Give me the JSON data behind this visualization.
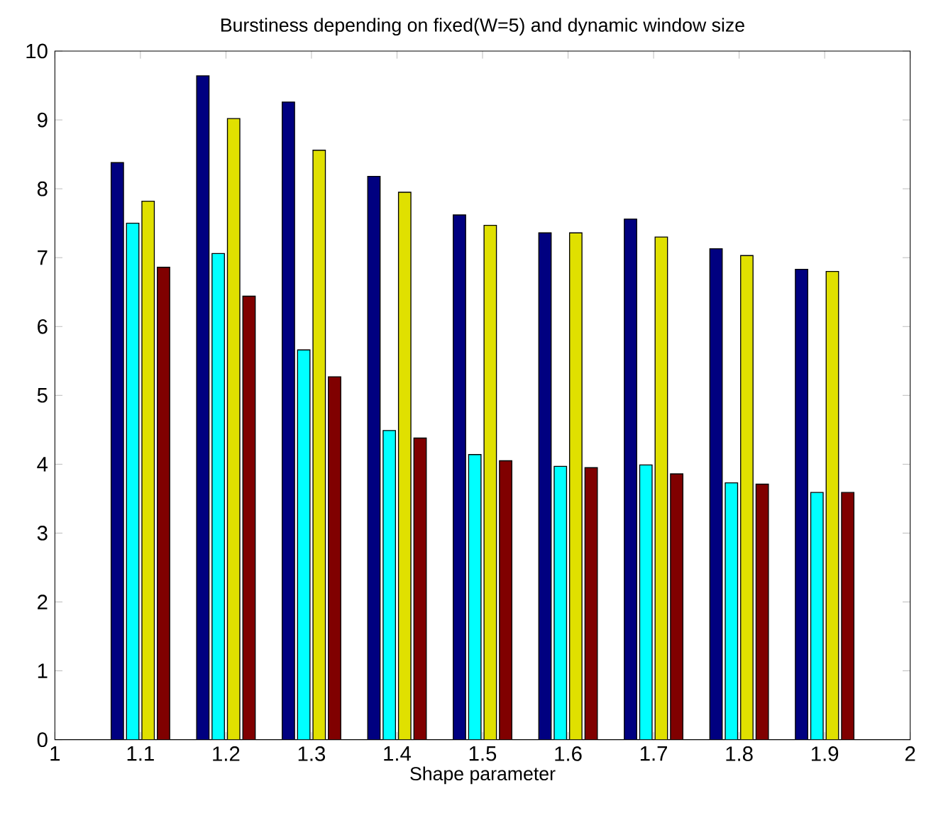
{
  "chart_data": {
    "type": "bar",
    "title": "Burstiness depending on fixed(W=5) and dynamic window size",
    "xlabel": "Shape parameter",
    "x": [
      1.1,
      1.2,
      1.3,
      1.4,
      1.5,
      1.6,
      1.7,
      1.8,
      1.9
    ],
    "series": [
      {
        "color": "#000080",
        "values": [
          8.38,
          9.64,
          9.26,
          8.18,
          7.62,
          7.36,
          7.56,
          7.13,
          6.83
        ]
      },
      {
        "color": "#00ffff",
        "values": [
          7.5,
          7.06,
          5.66,
          4.49,
          4.14,
          3.97,
          3.99,
          3.73,
          3.59
        ]
      },
      {
        "color": "#e0e000",
        "values": [
          7.82,
          9.02,
          8.56,
          7.95,
          7.47,
          7.36,
          7.3,
          7.03,
          6.8
        ]
      },
      {
        "color": "#800000",
        "values": [
          6.86,
          6.44,
          5.27,
          4.38,
          4.05,
          3.95,
          3.86,
          3.71,
          3.59
        ]
      }
    ],
    "xlim": [
      1,
      2
    ],
    "xticks": [
      1,
      1.1,
      1.2,
      1.3,
      1.4,
      1.5,
      1.6,
      1.7,
      1.8,
      1.9,
      2
    ],
    "ylim": [
      0,
      10
    ],
    "yticks": [
      0,
      1,
      2,
      3,
      4,
      5,
      6,
      7,
      8,
      9,
      10
    ],
    "grid": false
  }
}
